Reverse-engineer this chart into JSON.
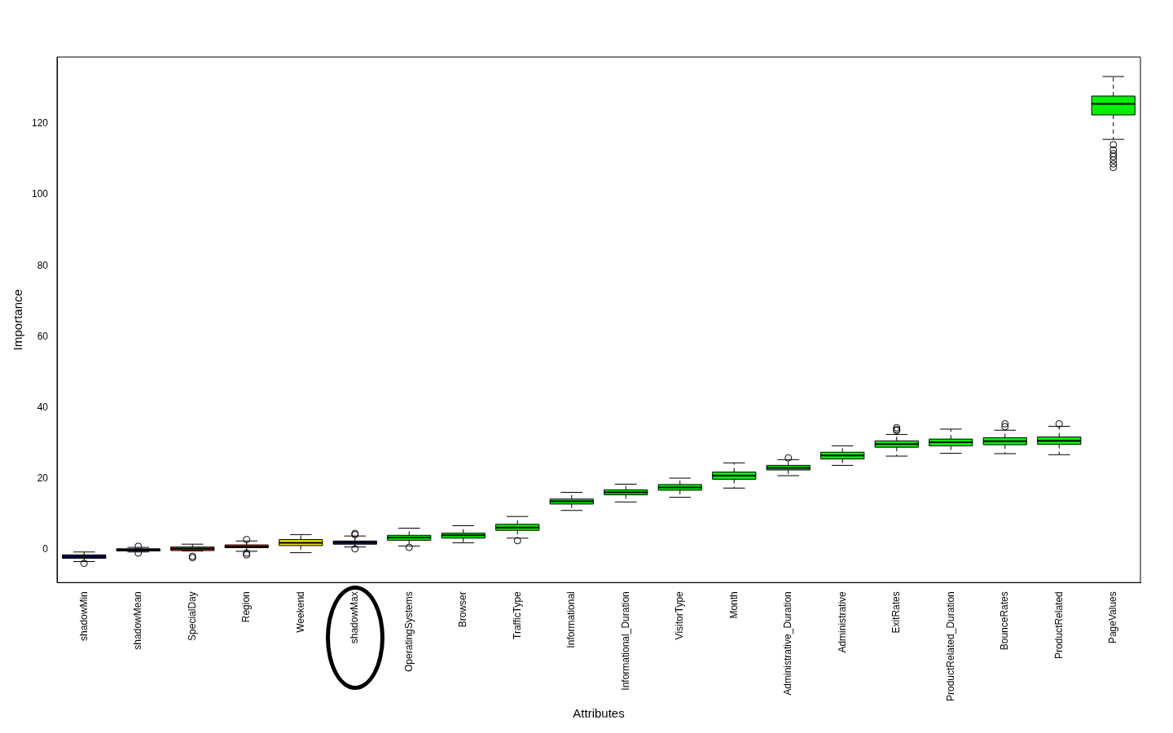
{
  "chart_data": {
    "type": "box",
    "xlabel": "Attributes",
    "ylabel": "Importance",
    "categories": [
      "shadowMin",
      "shadowMean",
      "SpecialDay",
      "Region",
      "Weekend",
      "shadowMax",
      "OperatingSystems",
      "Browser",
      "TrafficType",
      "Informational",
      "Informational_Duration",
      "VisitorType",
      "Month",
      "Administrative_Duration",
      "Administrative",
      "ExitRates",
      "ProductRelated_Duration",
      "BounceRates",
      "ProductRelated",
      "PageValues"
    ],
    "colors": [
      "#1a1aa0",
      "#1a1aa0",
      "#e8401c",
      "#e8401c",
      "#e8e000",
      "#1a1aa0",
      "#00ee00",
      "#00ee00",
      "#00ee00",
      "#00ee00",
      "#00ee00",
      "#00ee00",
      "#00ee00",
      "#00ee00",
      "#00ee00",
      "#00ee00",
      "#00ee00",
      "#00ee00",
      "#00ee00",
      "#00ee00"
    ],
    "boxes": [
      {
        "low": -3.3,
        "q1": -2.4,
        "median": -1.9,
        "q3": -1.4,
        "high": -0.6,
        "outliers": [
          -3.8
        ]
      },
      {
        "low": -0.6,
        "q1": -0.3,
        "median": 0,
        "q3": 0.3,
        "high": 0.7,
        "outliers": [
          1.0,
          -0.9
        ]
      },
      {
        "low": -0.3,
        "q1": -0.2,
        "median": 0.3,
        "q3": 0.8,
        "high": 1.6,
        "outliers": [
          -1.8,
          -2.2
        ]
      },
      {
        "low": -0.4,
        "q1": 0.6,
        "median": 0.9,
        "q3": 1.4,
        "high": 2.5,
        "outliers": [
          2.9,
          -0.9,
          -1.4
        ]
      },
      {
        "low": -0.8,
        "q1": 1.2,
        "median": 2.0,
        "q3": 2.9,
        "high": 4.3
      },
      {
        "low": 0.8,
        "q1": 1.6,
        "median": 2.1,
        "q3": 2.5,
        "high": 3.9,
        "outliers": [
          4.3,
          4.6,
          0.3
        ]
      },
      {
        "low": 1.1,
        "q1": 2.7,
        "median": 3.5,
        "q3": 4.1,
        "high": 6.1,
        "outliers": [
          0.7
        ]
      },
      {
        "low": 2.0,
        "q1": 3.3,
        "median": 4.1,
        "q3": 4.7,
        "high": 6.8
      },
      {
        "low": 3.3,
        "q1": 5.5,
        "median": 6.3,
        "q3": 7.2,
        "high": 9.4,
        "outliers": [
          2.6
        ]
      },
      {
        "low": 11.1,
        "q1": 12.9,
        "median": 13.7,
        "q3": 14.3,
        "high": 16.2
      },
      {
        "low": 13.5,
        "q1": 15.5,
        "median": 16.2,
        "q3": 16.9,
        "high": 18.5
      },
      {
        "low": 14.8,
        "q1": 16.8,
        "median": 17.6,
        "q3": 18.4,
        "high": 20.2
      },
      {
        "low": 17.4,
        "q1": 19.9,
        "median": 20.9,
        "q3": 21.9,
        "high": 24.5
      },
      {
        "low": 20.9,
        "q1": 22.5,
        "median": 23.1,
        "q3": 23.8,
        "high": 25.4,
        "outliers": [
          25.9
        ]
      },
      {
        "low": 23.8,
        "q1": 25.6,
        "median": 26.6,
        "q3": 27.5,
        "high": 29.3
      },
      {
        "low": 26.4,
        "q1": 28.9,
        "median": 29.8,
        "q3": 30.7,
        "high": 32.5,
        "outliers": [
          34.4,
          33.9,
          33.6
        ]
      },
      {
        "low": 27.2,
        "q1": 29.3,
        "median": 30.3,
        "q3": 31.2,
        "high": 34.0
      },
      {
        "low": 27.1,
        "q1": 29.6,
        "median": 30.6,
        "q3": 31.6,
        "high": 33.7,
        "outliers": [
          35.5,
          34.7
        ]
      },
      {
        "low": 26.8,
        "q1": 29.7,
        "median": 30.7,
        "q3": 31.8,
        "high": 34.8,
        "outliers": [
          35.5
        ]
      },
      {
        "low": 115.6,
        "q1": 122.5,
        "median": 125.6,
        "q3": 127.8,
        "high": 133.3,
        "outliers": [
          114.1,
          112.6,
          111.6,
          110.8,
          109.8,
          108.7,
          107.7
        ]
      }
    ],
    "ylim": [
      -9.2,
      138.8
    ],
    "yticks": [
      0,
      20,
      40,
      60,
      80,
      100,
      120
    ],
    "grid": false,
    "legend": false
  }
}
